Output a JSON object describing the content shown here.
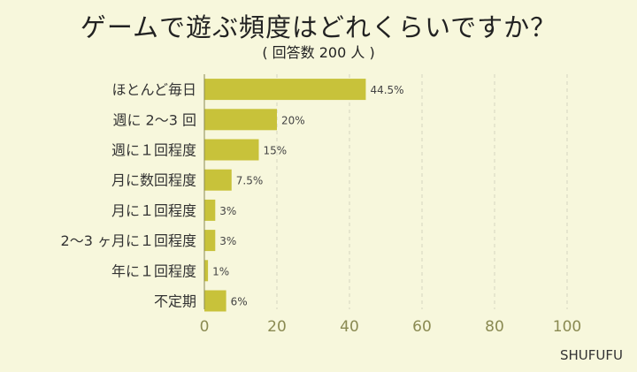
{
  "title": "ゲームで遊ぶ頻度はどれくらいですか？",
  "subtitle": "( 回答数 200 人 )",
  "brand": "SHUFUFU",
  "colors": {
    "bar": "#c8c23a",
    "background": "#f7f7dc",
    "grid": "#d6d6c0"
  },
  "chart_data": {
    "type": "bar",
    "orientation": "horizontal",
    "title": "ゲームで遊ぶ頻度はどれくらいですか？",
    "subtitle": "( 回答数 200 人 )",
    "categories": [
      "ほとんど毎日",
      "週に 2〜3 回",
      "週に１回程度",
      "月に数回程度",
      "月に１回程度",
      "2〜3 ヶ月に１回程度",
      "年に１回程度",
      "不定期"
    ],
    "values": [
      44.5,
      20,
      15,
      7.5,
      3,
      3,
      1,
      6
    ],
    "value_labels": [
      "44.5%",
      "20%",
      "15%",
      "7.5%",
      "3%",
      "3%",
      "1%",
      "6%"
    ],
    "xlim": [
      0,
      100
    ],
    "xticks": [
      0,
      20,
      40,
      60,
      80,
      100
    ],
    "grid": true
  }
}
